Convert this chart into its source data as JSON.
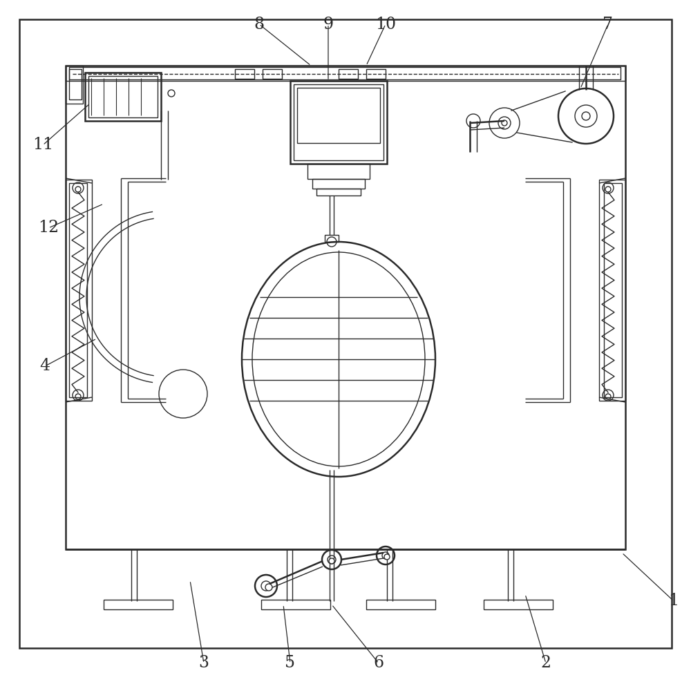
{
  "bg_color": "#ffffff",
  "line_color": "#2a2a2a",
  "lw": 1.0,
  "lw2": 1.8,
  "fig_w": 10.0,
  "fig_h": 9.9
}
